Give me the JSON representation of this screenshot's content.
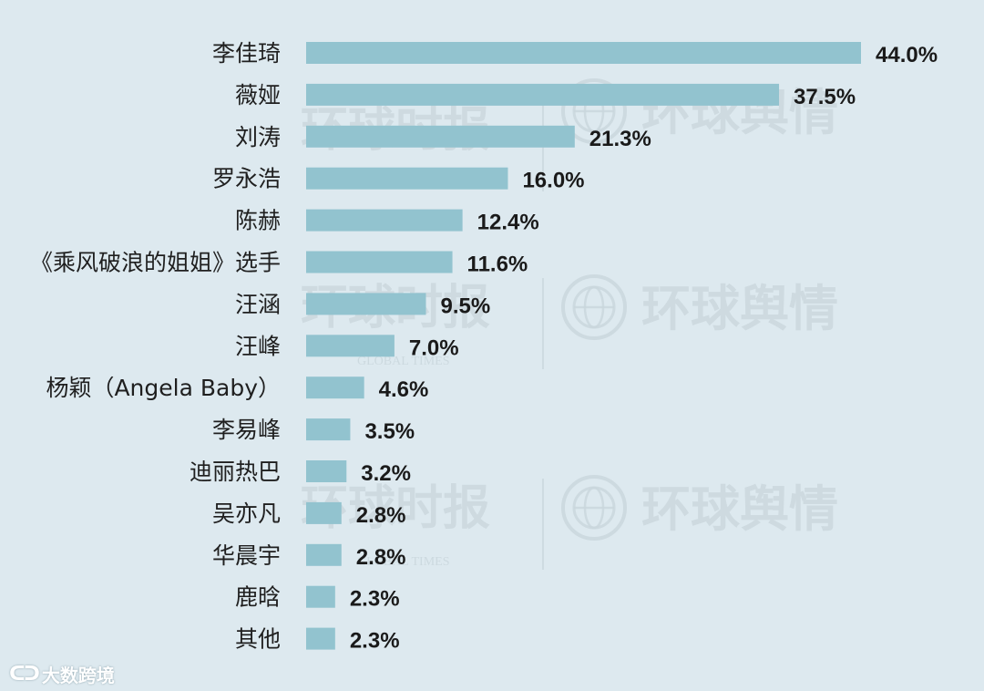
{
  "chart_data": {
    "type": "bar",
    "orientation": "horizontal",
    "categories": [
      "李佳琦",
      "薇娅",
      "刘涛",
      "罗永浩",
      "陈赫",
      "《乘风破浪的姐姐》选手",
      "汪涵",
      "汪峰",
      "杨颖（Angela Baby）",
      "李易峰",
      "迪丽热巴",
      "吴亦凡",
      "华晨宇",
      "鹿晗",
      "其他"
    ],
    "values": [
      44.0,
      37.5,
      21.3,
      16.0,
      12.4,
      11.6,
      9.5,
      7.0,
      4.6,
      3.5,
      3.2,
      2.8,
      2.8,
      2.3,
      2.3
    ],
    "value_labels": [
      "44.0%",
      "37.5%",
      "21.3%",
      "16.0%",
      "12.4%",
      "11.6%",
      "9.5%",
      "7.0%",
      "4.6%",
      "3.5%",
      "3.2%",
      "2.8%",
      "2.8%",
      "2.3%",
      "2.3%"
    ],
    "unit": "%",
    "xlim": [
      0,
      44
    ],
    "grid": false,
    "legend": "none",
    "bar_color": "#92c3cf",
    "title": "",
    "xlabel": "",
    "ylabel": ""
  },
  "watermarks": {
    "left_text": "环球时报",
    "left_sub": "GLOBAL TIMES",
    "right_text": "环球舆情",
    "logo_icon": "globe-logo-icon"
  },
  "source": {
    "logo_icon": "chain-logo-icon",
    "logo_glyph": "ᑕᑐ",
    "label": "大数跨境"
  },
  "colors": {
    "background": "#dde9ef",
    "bar": "#92c3cf",
    "text": "#1f1f1f"
  }
}
